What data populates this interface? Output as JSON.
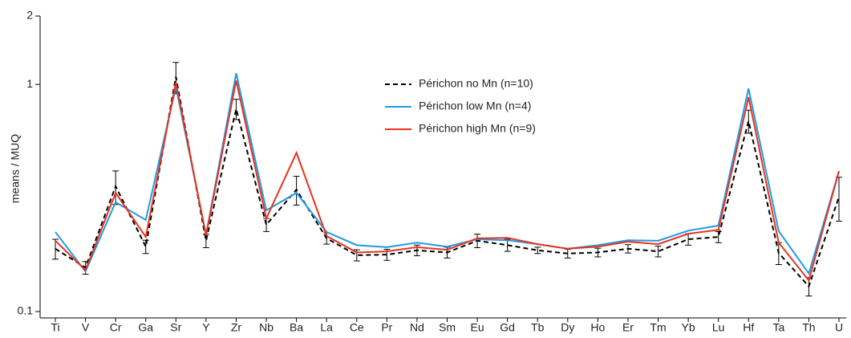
{
  "chart_data": {
    "type": "line",
    "y_label": "means / MUQ",
    "log_scale": true,
    "categories": [
      "Ti",
      "V",
      "Cr",
      "Ga",
      "Sr",
      "Y",
      "Zr",
      "Nb",
      "Ba",
      "La",
      "Ce",
      "Pr",
      "Nd",
      "Sm",
      "Eu",
      "Gd",
      "Tb",
      "Dy",
      "Ho",
      "Er",
      "Tm",
      "Yb",
      "Lu",
      "Hf",
      "Ta",
      "Th",
      "U"
    ],
    "ylim": [
      0.1,
      2
    ],
    "yticks": [
      0.1,
      1,
      2
    ],
    "legend": "upper-center",
    "series": [
      {
        "name": "Périchon no Mn (n=10)",
        "color": "#000000",
        "line_style": "dashed",
        "values": [
          0.189,
          0.156,
          0.356,
          0.193,
          1.08,
          0.205,
          0.78,
          0.241,
          0.344,
          0.21,
          0.177,
          0.178,
          0.186,
          0.182,
          0.205,
          0.196,
          0.186,
          0.18,
          0.182,
          0.189,
          0.184,
          0.208,
          0.213,
          0.69,
          0.181,
          0.129,
          0.32
        ],
        "errors": [
          0.019,
          0.01,
          0.06,
          0.013,
          0.17,
          0.014,
          0.08,
          0.016,
          0.05,
          0.012,
          0.01,
          0.01,
          0.01,
          0.01,
          0.014,
          0.012,
          0.006,
          0.008,
          0.008,
          0.008,
          0.01,
          0.012,
          0.012,
          0.08,
          0.02,
          0.012,
          0.07
        ]
      },
      {
        "name": "Périchon low Mn (n=4)",
        "color": "#1e9be6",
        "line_style": "solid",
        "values": [
          0.224,
          0.15,
          0.303,
          0.253,
          0.975,
          0.218,
          1.12,
          0.279,
          0.333,
          0.224,
          0.196,
          0.192,
          0.201,
          0.193,
          0.208,
          0.206,
          0.198,
          0.189,
          0.196,
          0.206,
          0.205,
          0.227,
          0.239,
          0.96,
          0.226,
          0.147,
          0.415
        ]
      },
      {
        "name": "Périchon high Mn (n=9)",
        "color": "#e8321e",
        "line_style": "solid",
        "values": [
          0.205,
          0.152,
          0.333,
          0.213,
          1.02,
          0.216,
          1.04,
          0.257,
          0.5,
          0.215,
          0.182,
          0.184,
          0.192,
          0.187,
          0.21,
          0.211,
          0.198,
          0.189,
          0.193,
          0.203,
          0.198,
          0.22,
          0.229,
          0.878,
          0.201,
          0.137,
          0.415
        ]
      }
    ]
  }
}
